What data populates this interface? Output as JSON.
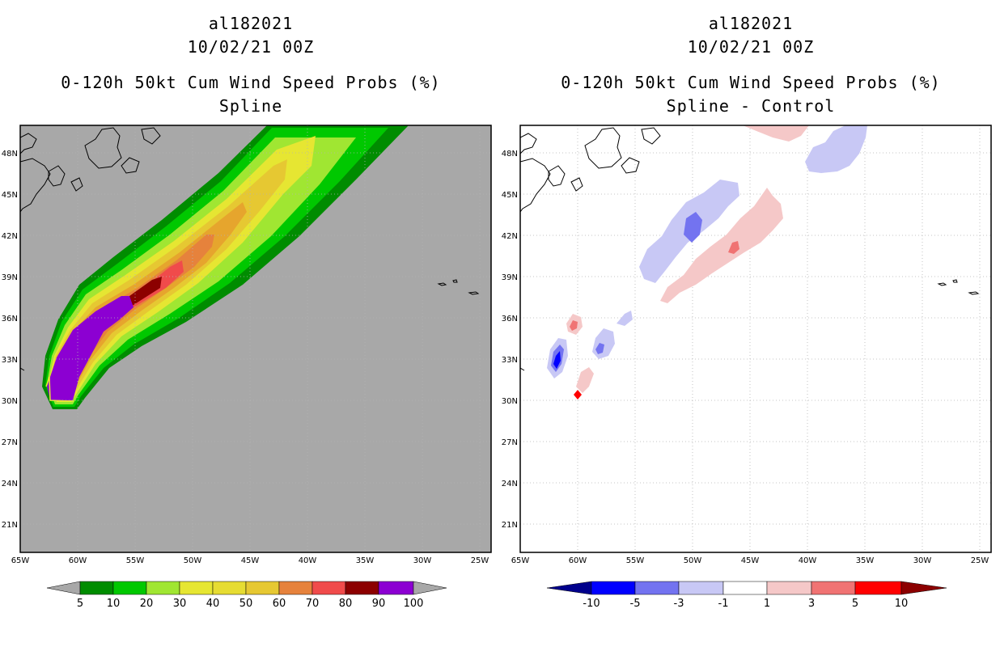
{
  "left_panel": {
    "storm_id": "al182021",
    "datetime": "10/02/21 00Z",
    "product": "0-120h 50kt Cum Wind Speed Probs (%)",
    "subtitle": "Spline"
  },
  "right_panel": {
    "storm_id": "al182021",
    "datetime": "10/02/21 00Z",
    "product": "0-120h 50kt Cum Wind Speed Probs (%)",
    "subtitle": "Spline - Control"
  },
  "map": {
    "lat_labels": [
      "48N",
      "45N",
      "42N",
      "39N",
      "36N",
      "33N",
      "30N",
      "27N",
      "24N",
      "21N"
    ],
    "lat_values": [
      48,
      45,
      42,
      39,
      36,
      33,
      30,
      27,
      24,
      21
    ],
    "lon_labels": [
      "65W",
      "60W",
      "55W",
      "50W",
      "45W",
      "40W",
      "35W",
      "30W",
      "25W"
    ],
    "lon_values": [
      65,
      60,
      55,
      50,
      45,
      40,
      35,
      30,
      25
    ],
    "lat_range": [
      19.2,
      50.2
    ],
    "lon_range": [
      65,
      24.5
    ]
  },
  "left_colorbar": {
    "labels": [
      "5",
      "10",
      "20",
      "30",
      "40",
      "50",
      "60",
      "70",
      "80",
      "90",
      "100"
    ],
    "colors": [
      "#008c00",
      "#00c800",
      "#00e600",
      "#a0e632",
      "#e6e632",
      "#e6c832",
      "#e6a52d",
      "#e6823c",
      "#f04b4b",
      "#8c0000",
      "#8c00d2"
    ]
  },
  "right_colorbar": {
    "labels": [
      "-10",
      "-5",
      "-3",
      "-1",
      "1",
      "3",
      "5",
      "10"
    ],
    "colors": [
      "#00008c",
      "#0000ff",
      "#7373f0",
      "#c8c8f5",
      "#ffffff",
      "#f5c8c8",
      "#f07373",
      "#ff0000",
      "#8c0000"
    ]
  },
  "colors": {
    "ocean": "#a8a8a8",
    "grid": "#b4b4b4"
  }
}
